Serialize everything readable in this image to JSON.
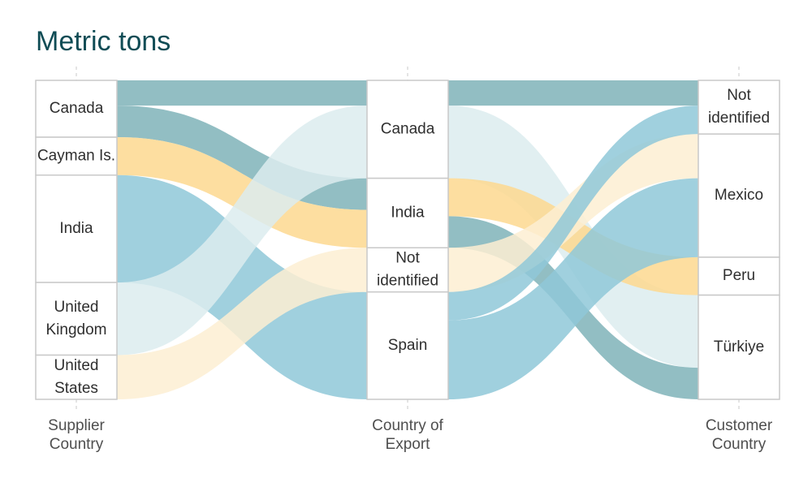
{
  "title": "Metric tons",
  "chart_data": {
    "type": "sankey",
    "title": "Metric tons",
    "stages": [
      {
        "label": "Supplier Country",
        "label_lines": [
          "Supplier",
          "Country"
        ],
        "nodes": [
          {
            "name": "Canada",
            "label_lines": [
              "Canada"
            ]
          },
          {
            "name": "Cayman Is.",
            "label_lines": [
              "Cayman Is."
            ]
          },
          {
            "name": "India",
            "label_lines": [
              "India"
            ]
          },
          {
            "name": "United Kingdom",
            "label_lines": [
              "United",
              "Kingdom"
            ]
          },
          {
            "name": "United States",
            "label_lines": [
              "United",
              "States"
            ]
          }
        ]
      },
      {
        "label": "Country of Export",
        "label_lines": [
          "Country of",
          "Export"
        ],
        "nodes": [
          {
            "name": "Canada",
            "label_lines": [
              "Canada"
            ]
          },
          {
            "name": "India",
            "label_lines": [
              "India"
            ]
          },
          {
            "name": "Not identified",
            "label_lines": [
              "Not",
              "identified"
            ]
          },
          {
            "name": "Spain",
            "label_lines": [
              "Spain"
            ]
          }
        ]
      },
      {
        "label": "Customer Country",
        "label_lines": [
          "Customer",
          "Country"
        ],
        "nodes": [
          {
            "name": "Not identified",
            "label_lines": [
              "Not",
              "identified"
            ]
          },
          {
            "name": "Mexico",
            "label_lines": [
              "Mexico"
            ]
          },
          {
            "name": "Peru",
            "label_lines": [
              "Peru"
            ]
          },
          {
            "name": "Türkiye",
            "label_lines": [
              "Türkiye"
            ]
          }
        ]
      }
    ],
    "flows": [
      {
        "stage": 0,
        "source": "Canada",
        "target": "Canada",
        "value": 8,
        "color": "#7fb3b8"
      },
      {
        "stage": 0,
        "source": "Canada",
        "target": "India",
        "value": 10,
        "color": "#7fb3b8"
      },
      {
        "stage": 0,
        "source": "Cayman Is.",
        "target": "India",
        "value": 12,
        "color": "#fdd88f"
      },
      {
        "stage": 0,
        "source": "India",
        "target": "Spain",
        "value": 34,
        "color": "#8fc8d8"
      },
      {
        "stage": 0,
        "source": "United Kingdom",
        "target": "Canada",
        "value": 23,
        "color": "#dcecee"
      },
      {
        "stage": 0,
        "source": "United States",
        "target": "Not identified",
        "value": 14,
        "color": "#fdefd2"
      },
      {
        "stage": 1,
        "source": "Canada",
        "target": "Not identified",
        "value": 8,
        "color": "#7fb3b8"
      },
      {
        "stage": 1,
        "source": "Canada",
        "target": "Türkiye",
        "value": 23,
        "color": "#dcecee"
      },
      {
        "stage": 1,
        "source": "India",
        "target": "Peru",
        "value": 12,
        "color": "#fdd88f"
      },
      {
        "stage": 1,
        "source": "India",
        "target": "Türkiye",
        "value": 10,
        "color": "#7fb3b8"
      },
      {
        "stage": 1,
        "source": "Not identified",
        "target": "Mexico",
        "value": 14,
        "color": "#fdefd2"
      },
      {
        "stage": 1,
        "source": "Spain",
        "target": "Not identified",
        "value": 9,
        "color": "#8fc8d8"
      },
      {
        "stage": 1,
        "source": "Spain",
        "target": "Mexico",
        "value": 25,
        "color": "#8fc8d8"
      }
    ],
    "colors": {
      "title": "#0f4c55",
      "teal": "#7fb3b8",
      "blue": "#8fc8d8",
      "light_blue": "#dcecee",
      "yellow": "#fdd88f",
      "light_yellow": "#fdefd2"
    }
  }
}
